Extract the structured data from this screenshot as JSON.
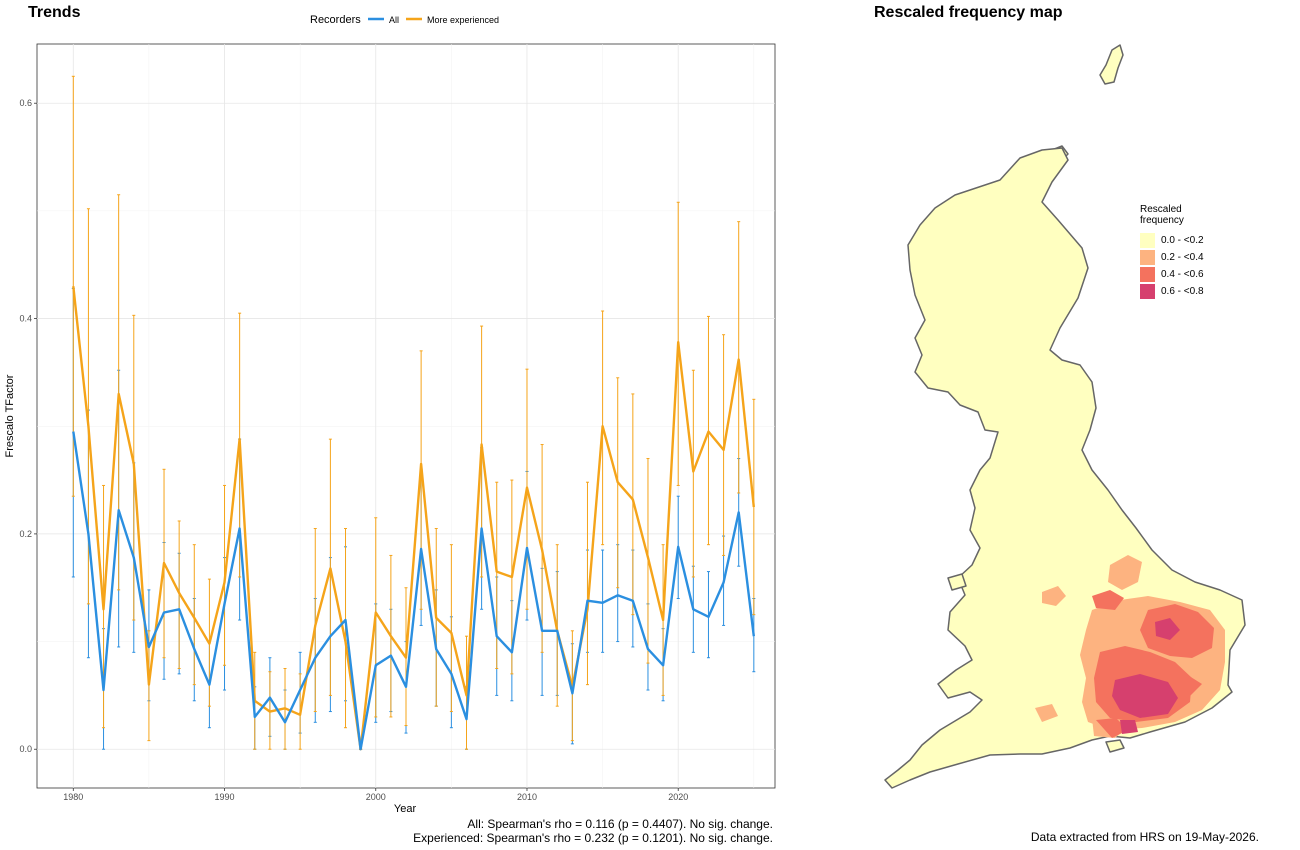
{
  "trends": {
    "title": "Trends",
    "stats_all": "All: Spearman's rho = 0.116 (p = 0.4407). No sig. change.",
    "stats_experienced": "Experienced: Spearman's rho = 0.232 (p = 0.1201). No sig. change."
  },
  "map": {
    "title": "Rescaled frequency map",
    "legend": {
      "title": "Rescaled frequency",
      "items": [
        {
          "label": "0.0 - <0.2",
          "color": "#ffffc0"
        },
        {
          "label": "0.2 - <0.4",
          "color": "#fdb380"
        },
        {
          "label": "0.4 - <0.6",
          "color": "#f4725e"
        },
        {
          "label": "0.6 - <0.8",
          "color": "#d6406e"
        }
      ]
    },
    "note": "Data extracted from HRS on 19-May-2026."
  },
  "chart_data": {
    "type": "line",
    "title": "Trends",
    "xlabel": "Year",
    "ylabel": "Frescalo TFactor",
    "xlim": [
      1977.6,
      2026.4
    ],
    "ylim": [
      -0.036,
      0.655
    ],
    "x_ticks": [
      1980,
      1990,
      2000,
      2010,
      2020
    ],
    "y_ticks": [
      0.0,
      0.2,
      0.4,
      0.6
    ],
    "grid": true,
    "legend": {
      "title": "Recorders",
      "position": "top"
    },
    "x": [
      1980,
      1981,
      1982,
      1983,
      1984,
      1985,
      1986,
      1987,
      1988,
      1989,
      1990,
      1991,
      1992,
      1993,
      1994,
      1995,
      1996,
      1997,
      1998,
      1999,
      2000,
      2001,
      2002,
      2003,
      2004,
      2005,
      2006,
      2007,
      2008,
      2009,
      2010,
      2011,
      2012,
      2013,
      2014,
      2015,
      2016,
      2017,
      2018,
      2019,
      2020,
      2021,
      2022,
      2023,
      2024,
      2025
    ],
    "series": [
      {
        "name": "All",
        "color": "#2b8fe0",
        "values": [
          0.295,
          0.2,
          0.055,
          0.222,
          0.178,
          0.095,
          0.127,
          0.13,
          0.093,
          0.06,
          0.135,
          0.205,
          0.03,
          0.048,
          0.025,
          0.055,
          0.085,
          0.105,
          0.12,
          0.0,
          0.078,
          0.087,
          0.058,
          0.186,
          0.093,
          0.07,
          0.028,
          0.205,
          0.105,
          0.09,
          0.187,
          0.11,
          0.11,
          0.052,
          0.138,
          0.136,
          0.143,
          0.138,
          0.093,
          0.078,
          0.188,
          0.13,
          0.123,
          0.155,
          0.22,
          0.105
        ],
        "lower": [
          0.16,
          0.085,
          0.0,
          0.095,
          0.09,
          0.045,
          0.065,
          0.07,
          0.045,
          0.02,
          0.055,
          0.12,
          0.0,
          0.012,
          0.0,
          0.015,
          0.025,
          0.035,
          0.045,
          0.0,
          0.025,
          0.035,
          0.015,
          0.115,
          0.04,
          0.02,
          0.0,
          0.13,
          0.05,
          0.045,
          0.12,
          0.05,
          0.05,
          0.005,
          0.09,
          0.09,
          0.1,
          0.095,
          0.055,
          0.045,
          0.14,
          0.09,
          0.085,
          0.115,
          0.17,
          0.072
        ],
        "upper": [
          0.428,
          0.315,
          0.112,
          0.352,
          0.266,
          0.148,
          0.192,
          0.182,
          0.14,
          0.1,
          0.178,
          0.288,
          0.058,
          0.085,
          0.055,
          0.09,
          0.14,
          0.178,
          0.188,
          0.0,
          0.135,
          0.13,
          0.1,
          0.26,
          0.148,
          0.123,
          0.058,
          0.28,
          0.16,
          0.138,
          0.258,
          0.168,
          0.165,
          0.098,
          0.185,
          0.185,
          0.19,
          0.185,
          0.135,
          0.112,
          0.235,
          0.17,
          0.165,
          0.198,
          0.27,
          0.14
        ]
      },
      {
        "name": "More experienced",
        "color": "#f5a41a",
        "values": [
          0.43,
          0.3,
          0.13,
          0.33,
          0.265,
          0.06,
          0.173,
          0.145,
          0.122,
          0.098,
          0.155,
          0.288,
          0.045,
          0.035,
          0.038,
          0.032,
          0.115,
          0.168,
          0.1,
          0.0,
          0.127,
          0.105,
          0.085,
          0.265,
          0.122,
          0.108,
          0.05,
          0.283,
          0.165,
          0.16,
          0.243,
          0.185,
          0.11,
          0.058,
          0.13,
          0.3,
          0.248,
          0.232,
          0.178,
          0.12,
          0.378,
          0.258,
          0.295,
          0.278,
          0.362,
          0.225
        ],
        "lower": [
          0.235,
          0.135,
          0.02,
          0.148,
          0.12,
          0.008,
          0.085,
          0.075,
          0.06,
          0.04,
          0.078,
          0.16,
          0.0,
          0.0,
          0.0,
          0.0,
          0.035,
          0.05,
          0.02,
          0.0,
          0.03,
          0.03,
          0.022,
          0.13,
          0.04,
          0.035,
          0.0,
          0.16,
          0.075,
          0.07,
          0.13,
          0.09,
          0.04,
          0.008,
          0.06,
          0.19,
          0.15,
          0.125,
          0.08,
          0.05,
          0.245,
          0.16,
          0.19,
          0.18,
          0.238,
          0.125
        ],
        "upper": [
          0.625,
          0.502,
          0.245,
          0.515,
          0.403,
          0.11,
          0.26,
          0.212,
          0.19,
          0.158,
          0.245,
          0.405,
          0.09,
          0.072,
          0.075,
          0.07,
          0.205,
          0.288,
          0.205,
          0.0,
          0.215,
          0.18,
          0.15,
          0.37,
          0.205,
          0.19,
          0.105,
          0.393,
          0.248,
          0.25,
          0.353,
          0.283,
          0.19,
          0.11,
          0.248,
          0.407,
          0.345,
          0.33,
          0.27,
          0.19,
          0.508,
          0.352,
          0.402,
          0.385,
          0.49,
          0.325
        ]
      }
    ]
  }
}
